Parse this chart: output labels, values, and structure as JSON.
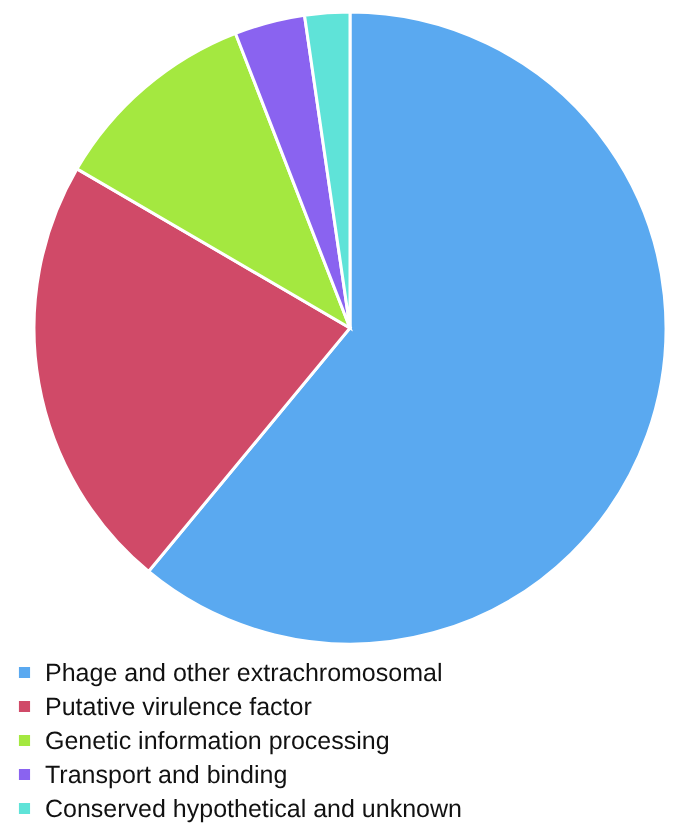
{
  "chart_data": {
    "type": "pie",
    "categories": [
      "Phage and other extrachromosomal",
      "Putative virulence factor",
      "Genetic information processing",
      "Transport and binding",
      "Conserved hypothetical and unknown"
    ],
    "values": [
      61,
      22.4,
      10.7,
      3.6,
      2.3
    ],
    "colors": [
      "#5aa9f0",
      "#d04a68",
      "#a4e840",
      "#8a63f0",
      "#5fe3d8"
    ],
    "legend": "bottom"
  }
}
